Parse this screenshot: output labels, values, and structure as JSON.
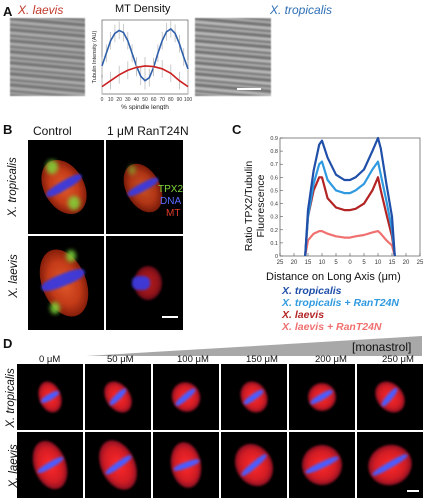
{
  "panel_a": {
    "label": "A",
    "species_left": "X. laevis",
    "species_right": "X. tropicalis",
    "species_left_color": "#c0392b",
    "species_right_color": "#2e6fb5",
    "plot_title": "MT Density",
    "chart_data": {
      "type": "line",
      "title": "MT Density",
      "xlabel": "% spindle length",
      "ylabel": "Tubulin Intensity (AU)",
      "xticks": [
        "0",
        "10",
        "20",
        "30",
        "40",
        "50",
        "60",
        "70",
        "80",
        "90",
        "100"
      ],
      "xlim": [
        0,
        100
      ],
      "ylim": [
        0,
        1
      ],
      "series": [
        {
          "color": "#2e5faa",
          "x": [
            0,
            5,
            10,
            15,
            20,
            25,
            30,
            35,
            40,
            45,
            50,
            55,
            60,
            65,
            70,
            75,
            80,
            85,
            90,
            95,
            100
          ],
          "y": [
            0.38,
            0.55,
            0.72,
            0.82,
            0.86,
            0.83,
            0.72,
            0.55,
            0.38,
            0.24,
            0.18,
            0.22,
            0.36,
            0.55,
            0.72,
            0.84,
            0.88,
            0.82,
            0.68,
            0.5,
            0.34
          ]
        },
        {
          "color": "#cc1f1f",
          "x": [
            0,
            10,
            20,
            30,
            40,
            50,
            60,
            70,
            80,
            90,
            100
          ],
          "y": [
            0.1,
            0.18,
            0.26,
            0.32,
            0.36,
            0.38,
            0.37,
            0.34,
            0.28,
            0.18,
            0.1
          ]
        }
      ]
    }
  },
  "panel_b": {
    "label": "B",
    "col_control": "Control",
    "col_ran": "1 μM RanT24N",
    "row_top": "X. tropicalis",
    "row_bottom": "X. laevis",
    "channel_tpx2": "TPX2",
    "channel_dna": "DNA",
    "channel_mt": "MT",
    "tpx2_color": "#7fd63a",
    "dna_color": "#5a6cff",
    "mt_color": "#e03a2a"
  },
  "panel_c": {
    "label": "C",
    "chart_data": {
      "type": "line",
      "xlabel": "Distance on Long Axis (μm)",
      "ylabel": "Ratio TPX2/Tubulin Fluorescence",
      "xticks": [
        "25",
        "20",
        "15",
        "10",
        "5",
        "0",
        "5",
        "10",
        "15",
        "20",
        "25"
      ],
      "yticks": [
        "0",
        "0.1",
        "0.2",
        "0.3",
        "0.4",
        "0.5",
        "0.6",
        "0.7",
        "0.8",
        "0.9"
      ],
      "xlim": [
        -25,
        25
      ],
      "ylim": [
        0,
        0.9
      ],
      "series": [
        {
          "name": "X. tropicalis",
          "color": "#1f4fa8",
          "x": [
            -16,
            -15,
            -13,
            -11,
            -10,
            -8,
            -5,
            -2,
            0,
            2,
            5,
            8,
            10,
            11,
            13,
            15,
            16
          ],
          "y": [
            0,
            0.35,
            0.65,
            0.85,
            0.88,
            0.75,
            0.62,
            0.58,
            0.58,
            0.6,
            0.66,
            0.8,
            0.9,
            0.82,
            0.55,
            0.3,
            0
          ]
        },
        {
          "name": "X. tropicalis + RanT24N",
          "color": "#2f9ae0",
          "x": [
            -16,
            -15,
            -13,
            -11,
            -10,
            -8,
            -5,
            -2,
            0,
            2,
            5,
            8,
            10,
            11,
            13,
            15,
            16
          ],
          "y": [
            0,
            0.3,
            0.55,
            0.7,
            0.72,
            0.58,
            0.5,
            0.48,
            0.48,
            0.5,
            0.55,
            0.66,
            0.72,
            0.62,
            0.42,
            0.2,
            0
          ]
        },
        {
          "name": "X. laevis",
          "color": "#b32424",
          "x": [
            -16,
            -15,
            -13,
            -11,
            -10,
            -8,
            -5,
            -2,
            0,
            2,
            5,
            8,
            10,
            11,
            13,
            15,
            16
          ],
          "y": [
            0,
            0.3,
            0.5,
            0.6,
            0.6,
            0.44,
            0.37,
            0.35,
            0.35,
            0.36,
            0.4,
            0.5,
            0.6,
            0.5,
            0.32,
            0.15,
            0
          ]
        },
        {
          "name": "X. laevis + RanT24N",
          "color": "#f07070",
          "x": [
            -16,
            -15,
            -13,
            -11,
            -10,
            -8,
            -5,
            -2,
            0,
            2,
            5,
            8,
            10,
            11,
            13,
            15,
            16
          ],
          "y": [
            0,
            0.12,
            0.17,
            0.19,
            0.19,
            0.17,
            0.15,
            0.14,
            0.14,
            0.15,
            0.16,
            0.18,
            0.19,
            0.17,
            0.12,
            0.08,
            0
          ]
        }
      ]
    }
  },
  "panel_d": {
    "label": "D",
    "drug_label": "[monastrol]",
    "concentrations": [
      "0 μM",
      "50 μM",
      "100 μM",
      "150 μM",
      "200 μM",
      "250 μM"
    ],
    "row_top": "X. tropicalis",
    "row_bottom": "X. laevis"
  }
}
